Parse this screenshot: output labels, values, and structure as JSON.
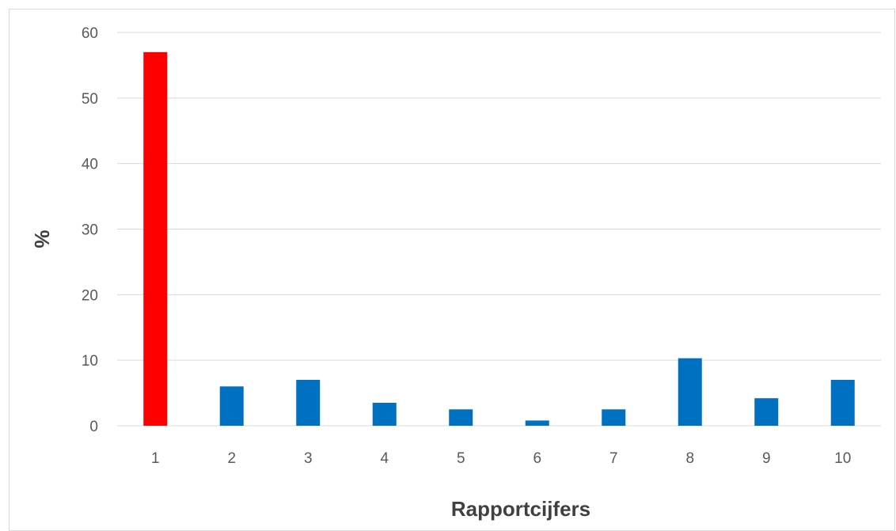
{
  "chart_data": {
    "type": "bar",
    "title": "",
    "xlabel": "Rapportcijfers",
    "ylabel": "%",
    "categories": [
      "1",
      "2",
      "3",
      "4",
      "5",
      "6",
      "7",
      "8",
      "9",
      "10"
    ],
    "values": [
      57,
      6,
      7,
      3.5,
      2.5,
      0.8,
      2.5,
      10.3,
      4.2,
      7
    ],
    "bar_colors": [
      "#FF0000",
      "#0070C0",
      "#0070C0",
      "#0070C0",
      "#0070C0",
      "#0070C0",
      "#0070C0",
      "#0070C0",
      "#0070C0",
      "#0070C0"
    ],
    "ylim": [
      0,
      60
    ],
    "yticks": [
      "0",
      "10",
      "20",
      "30",
      "40",
      "50",
      "60"
    ],
    "grid": true,
    "legend": "none",
    "colors": {
      "gridline": "#D9D9D9",
      "axis_line": "#D9D9D9",
      "tick_text": "#595959",
      "axis_title": "#404040"
    }
  }
}
